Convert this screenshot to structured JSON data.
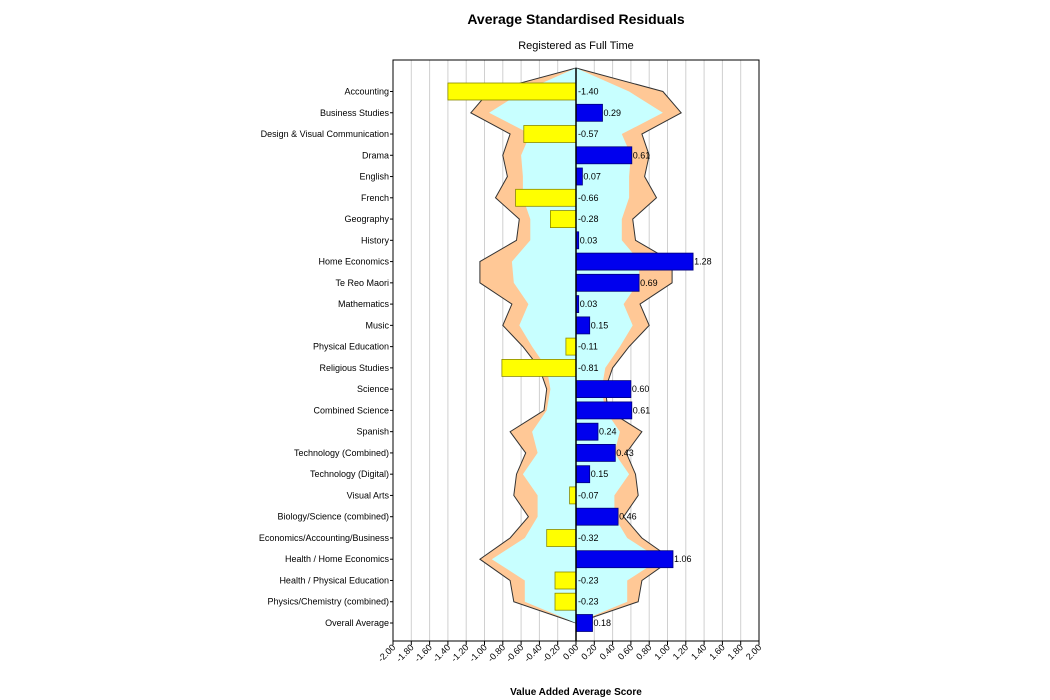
{
  "chart_data": {
    "type": "bar",
    "orientation": "horizontal",
    "title": "Average Standardised Residuals",
    "subtitle": "Registered as Full Time",
    "xlabel": "Value Added Average Score",
    "ylabel": "",
    "xlim": [
      -2.0,
      2.0
    ],
    "xticks": [
      "-2.00",
      "-1.80",
      "-1.60",
      "-1.40",
      "-1.20",
      "-1.00",
      "-0.80",
      "-0.60",
      "-0.40",
      "-0.20",
      "0.00",
      "0.20",
      "0.40",
      "0.60",
      "0.80",
      "1.00",
      "1.20",
      "1.40",
      "1.60",
      "1.80",
      "2.00"
    ],
    "grid": true,
    "colors": {
      "positive_bar": "#0000ee",
      "negative_bar": "#ffff00",
      "inner_band": "#c8ffff",
      "outer_band": "#ffc896",
      "band_line": "#333333",
      "grid": "#d0d0d0"
    },
    "categories": [
      "Accounting",
      "Business Studies",
      "Design & Visual Communication",
      "Drama",
      "English",
      "French",
      "Geography",
      "History",
      "Home Economics",
      "Te Reo Maori",
      "Mathematics",
      "Music",
      "Physical Education",
      "Religious Studies",
      "Science",
      "Combined Science",
      "Spanish",
      "Technology (Combined)",
      "Technology (Digital)",
      "Visual Arts",
      "Biology/Science (combined)",
      "Economics/Accounting/Business",
      "Health / Home Economics",
      "Health / Physical Education",
      "Physics/Chemistry (combined)",
      "Overall Average"
    ],
    "values": [
      -1.4,
      0.29,
      -0.57,
      0.61,
      0.07,
      -0.66,
      -0.28,
      0.03,
      1.28,
      0.69,
      0.03,
      0.15,
      -0.11,
      -0.81,
      0.6,
      0.61,
      0.24,
      0.43,
      0.15,
      -0.07,
      0.46,
      -0.32,
      1.06,
      -0.23,
      -0.23,
      0.18
    ],
    "value_labels": [
      "-1.40",
      "0.29",
      "-0.57",
      "0.61",
      "0.07",
      "-0.66",
      "-0.28",
      "0.03",
      "1.28",
      "0.69",
      "0.03",
      "0.15",
      "-0.11",
      "-0.81",
      "0.60",
      "0.61",
      "0.24",
      "0.43",
      "0.15",
      "-0.07",
      "0.46",
      "-0.32",
      "1.06",
      "-0.23",
      "-0.23",
      "0.18"
    ],
    "inner_band": [
      0.58,
      0.95,
      0.5,
      0.6,
      0.58,
      0.58,
      0.5,
      0.5,
      0.7,
      0.68,
      0.52,
      0.62,
      0.48,
      0.32,
      0.28,
      0.32,
      0.48,
      0.42,
      0.58,
      0.42,
      0.42,
      0.56,
      0.92,
      0.56,
      0.56,
      0.0
    ],
    "outer_band": [
      0.95,
      1.15,
      0.72,
      0.8,
      0.75,
      0.88,
      0.62,
      0.65,
      1.05,
      1.05,
      0.7,
      0.8,
      0.58,
      0.4,
      0.32,
      0.35,
      0.72,
      0.55,
      0.65,
      0.68,
      0.52,
      0.72,
      1.05,
      0.72,
      0.68,
      0.0
    ]
  }
}
